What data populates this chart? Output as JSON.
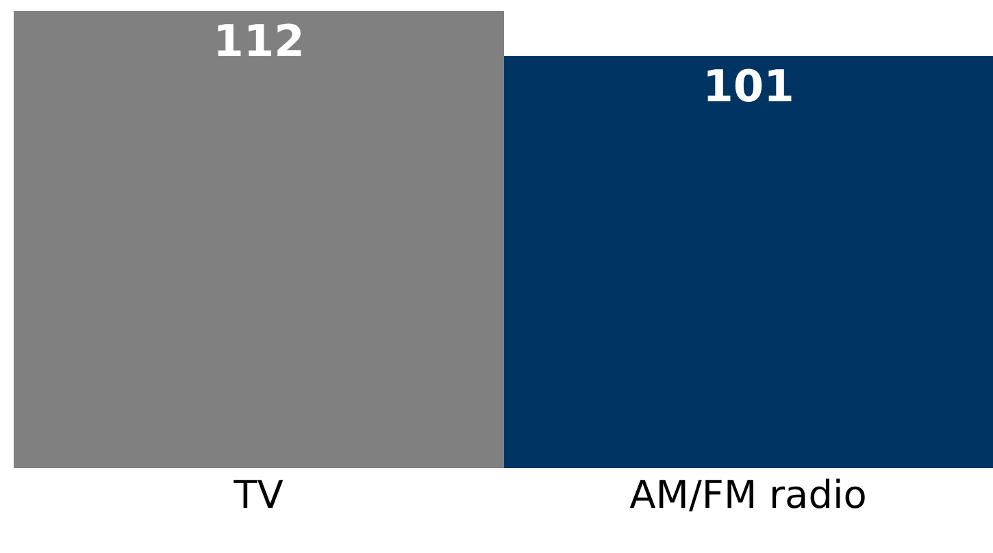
{
  "chart_data": {
    "type": "bar",
    "categories": [
      "TV",
      "AM/FM radio"
    ],
    "values": [
      112,
      101
    ],
    "colors": [
      "#808080",
      "#003462"
    ],
    "data_labels": true
  }
}
